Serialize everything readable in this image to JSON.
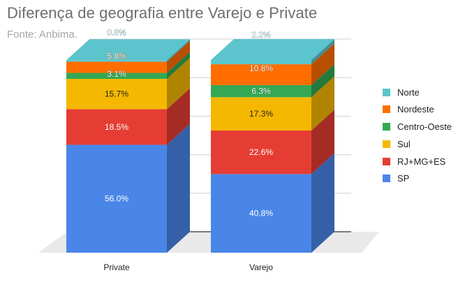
{
  "title": "Diferença de geografia entre Varejo e Private",
  "subtitle": "Fonte: Anbima.",
  "chart_data": {
    "type": "bar",
    "stacked": true,
    "orientation": "vertical",
    "style": "3d-stacked-percent",
    "title": "Diferença de geografia entre Varejo e Private",
    "subtitle": "Fonte: Anbima.",
    "categories": [
      "Private",
      "Varejo"
    ],
    "ylim": [
      0,
      100
    ],
    "grid": true,
    "legend_position": "right",
    "series": [
      {
        "name": "SP",
        "color": "#4a86e8",
        "values": [
          56.0,
          40.8
        ],
        "labels": [
          "56.0%",
          "40.8%"
        ]
      },
      {
        "name": "RJ+MG+ES",
        "color": "#e53d33",
        "values": [
          18.5,
          22.6
        ],
        "labels": [
          "18.5%",
          "22.6%"
        ]
      },
      {
        "name": "Sul",
        "color": "#f5b800",
        "values": [
          15.7,
          17.3
        ],
        "labels": [
          "15.7%",
          "17.3%"
        ]
      },
      {
        "name": "Centro-Oeste",
        "color": "#34a853",
        "values": [
          3.1,
          6.3
        ],
        "labels": [
          "3.1%",
          "6.3%"
        ]
      },
      {
        "name": "Nordeste",
        "color": "#ff6d00",
        "values": [
          5.8,
          10.8
        ],
        "labels": [
          "5.8%",
          "10.8%"
        ]
      },
      {
        "name": "Norte",
        "color": "#5bc4cc",
        "values": [
          0.8,
          2.2
        ],
        "labels": [
          "0.8%",
          "2.2%"
        ]
      }
    ],
    "legend_order": [
      "Norte",
      "Nordeste",
      "Centro-Oeste",
      "Sul",
      "RJ+MG+ES",
      "SP"
    ]
  }
}
